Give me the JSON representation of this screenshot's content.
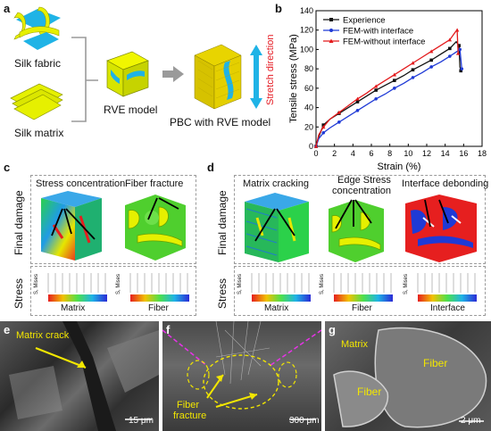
{
  "panels": {
    "a": {
      "label": "a",
      "silk_fabric": "Silk fabric",
      "silk_matrix": "Silk matrix",
      "rve_model": "RVE model",
      "pbc_model": "PBC with RVE model",
      "stretch": "Stretch direction",
      "colors": {
        "yellow": "#e6f000",
        "cyan": "#1fb3e6",
        "stretch": "#e51b23"
      }
    },
    "b": {
      "label": "b"
    },
    "c": {
      "label": "c",
      "final_damage": "Final damage",
      "stress": "Stress",
      "stress_conc": "Stress concentration",
      "fiber_fracture": "Fiber fracture",
      "matrix": "Matrix",
      "fiber": "Fiber",
      "smises": "S, Mises"
    },
    "d": {
      "label": "d",
      "final_damage": "Final damage",
      "stress": "Stress",
      "matrix_cracking": "Matrix cracking",
      "edge_stress_1": "Edge Stress",
      "edge_stress_2": "concentration",
      "interface_debonding": "Interface debonding",
      "matrix": "Matrix",
      "fiber": "Fiber",
      "interface": "Interface",
      "smises": "S, Mises"
    },
    "e": {
      "label": "e",
      "matrix_crack": "Matrix crack",
      "scale": "15 μm"
    },
    "f": {
      "label": "f",
      "fiber_fracture_1": "Fiber",
      "fiber_fracture_2": "fracture",
      "scale": "300 μm"
    },
    "g": {
      "label": "g",
      "matrix": "Matrix",
      "fiber1": "Fiber",
      "fiber2": "Fiber",
      "scale": "2 μm"
    }
  },
  "chart_data": {
    "type": "line",
    "xlabel": "Strain (%)",
    "ylabel": "Tensile stress (MPa)",
    "xlim": [
      0,
      18
    ],
    "ylim": [
      0,
      140
    ],
    "xticks": [
      0,
      2,
      4,
      6,
      8,
      10,
      12,
      14,
      16,
      18
    ],
    "yticks": [
      0,
      20,
      40,
      60,
      80,
      100,
      120,
      140
    ],
    "legend_position": "top-left",
    "series": [
      {
        "name": "Experience",
        "color": "#111111",
        "marker": "square",
        "x": [
          0,
          0.3,
          0.8,
          1.5,
          2.5,
          3.5,
          4.5,
          5.5,
          6.5,
          7.5,
          8.5,
          9.5,
          10.5,
          11.5,
          12.5,
          13.5,
          14.5,
          15.2,
          15.5,
          15.6,
          15.7
        ],
        "y": [
          0,
          10,
          22,
          28,
          34,
          40,
          46,
          52,
          58,
          63,
          68,
          73,
          79,
          84,
          89,
          95,
          101,
          108,
          104,
          82,
          78
        ]
      },
      {
        "name": "FEM-with interface",
        "color": "#1f3ad6",
        "marker": "circle",
        "x": [
          0,
          0.3,
          0.8,
          1.5,
          2.5,
          3.5,
          4.5,
          5.5,
          6.5,
          7.5,
          8.5,
          9.5,
          10.5,
          11.5,
          12.5,
          13.5,
          14.5,
          15.3,
          15.6,
          15.8
        ],
        "y": [
          0,
          8,
          14,
          19,
          25,
          31,
          37,
          43,
          49,
          54,
          60,
          65,
          71,
          76,
          82,
          87,
          93,
          98,
          100,
          80
        ]
      },
      {
        "name": "FEM-without interface",
        "color": "#e31a1c",
        "marker": "triangle",
        "x": [
          0,
          0.3,
          0.8,
          1.5,
          2.5,
          3.5,
          4.5,
          5.5,
          6.5,
          7.5,
          8.5,
          9.5,
          10.5,
          11.5,
          12.5,
          13.5,
          14.5,
          15.1,
          15.3,
          15.4
        ],
        "y": [
          0,
          12,
          20,
          28,
          35,
          42,
          49,
          55,
          62,
          68,
          74,
          80,
          86,
          92,
          98,
          104,
          110,
          118,
          120,
          96
        ]
      }
    ]
  }
}
